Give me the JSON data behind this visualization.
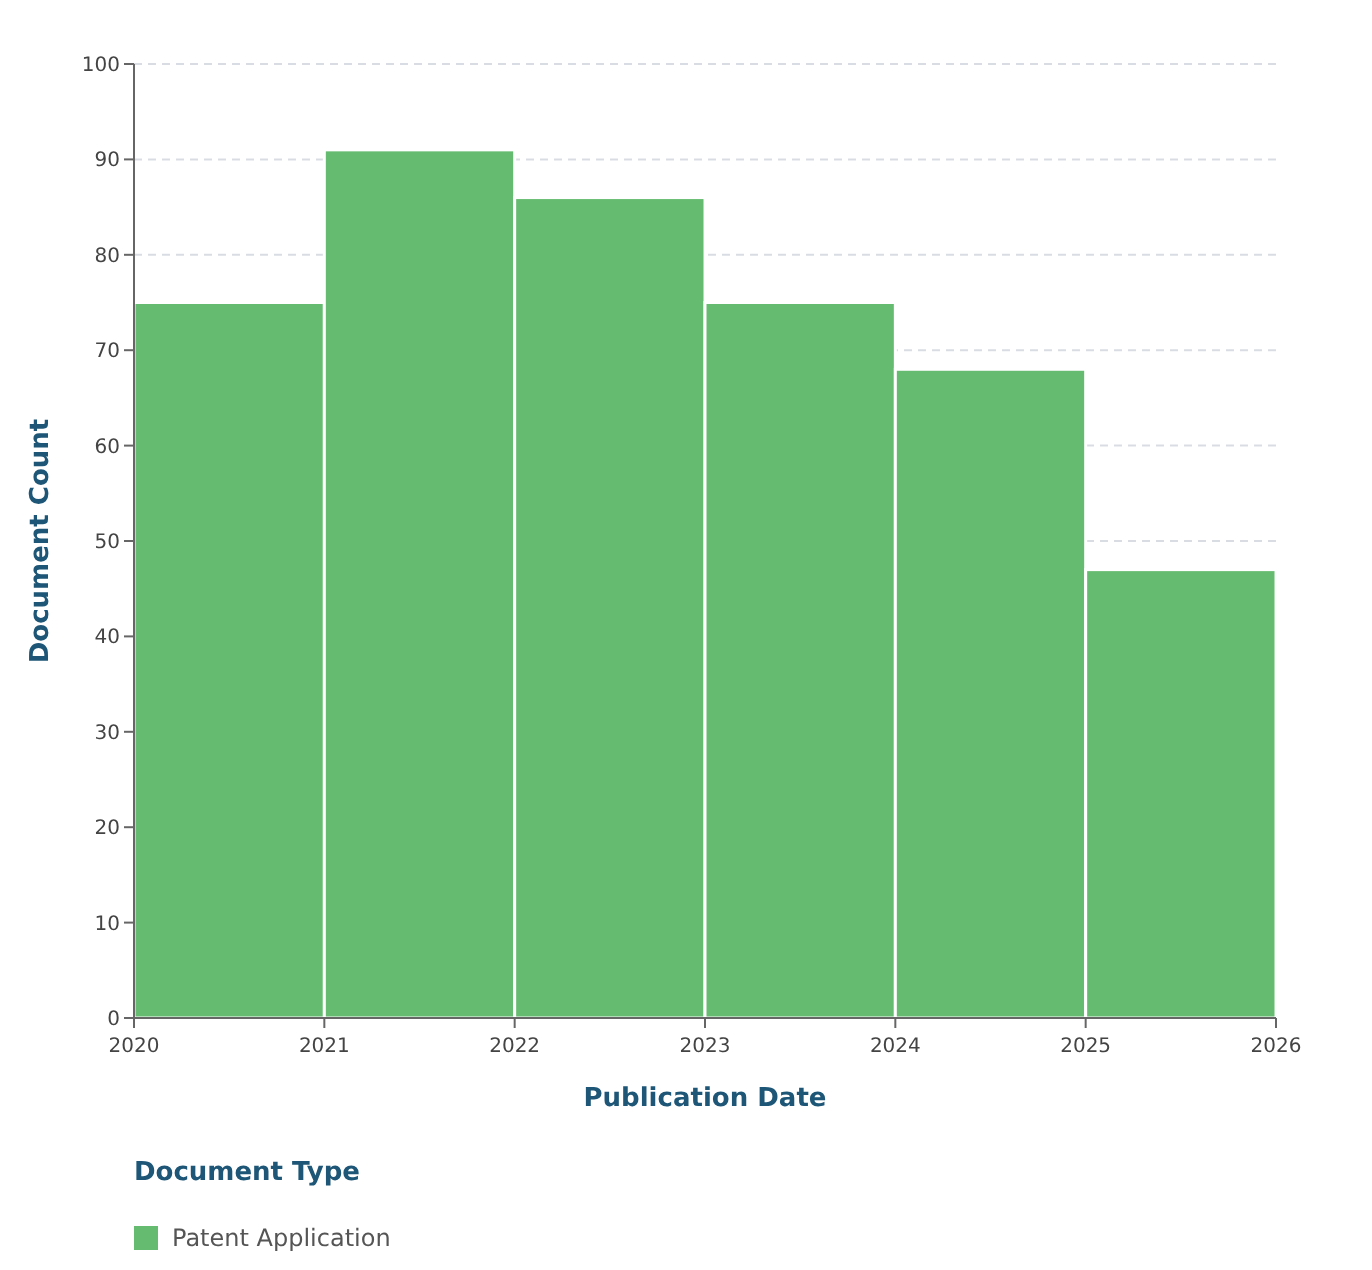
{
  "chart_data": {
    "type": "histogram",
    "xlabel": "Publication Date",
    "ylabel": "Document Count",
    "legend_title": "Document Type",
    "bins": [
      2020,
      2021,
      2022,
      2023,
      2024,
      2025,
      2026
    ],
    "series": [
      {
        "name": "Patent Application",
        "color": "#65bb6f",
        "values": [
          75,
          91,
          86,
          75,
          68,
          47
        ]
      }
    ],
    "xlim": [
      2020,
      2026
    ],
    "xticks": [
      2020,
      2021,
      2022,
      2023,
      2024,
      2025,
      2026
    ],
    "ylim": [
      0,
      100
    ],
    "yticks": [
      0,
      10,
      20,
      30,
      40,
      50,
      60,
      70,
      80,
      90,
      100
    ],
    "grid": "y",
    "legend": "bottom left"
  }
}
